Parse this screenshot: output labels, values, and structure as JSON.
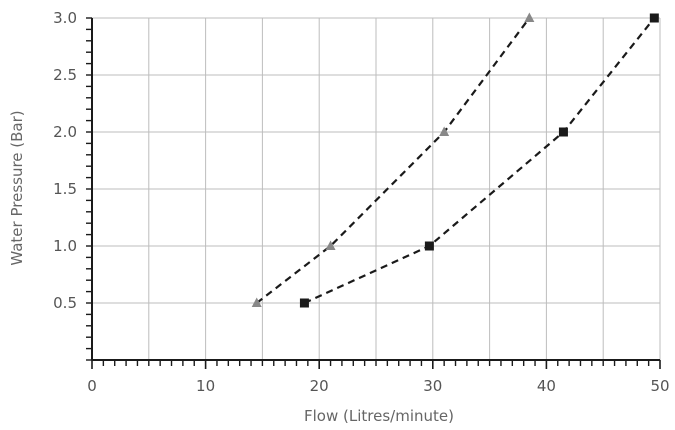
{
  "chart_data": {
    "type": "scatter",
    "title": "",
    "xlabel": "Flow (Litres/minute)",
    "ylabel": "Water Pressure (Bar)",
    "xlim": [
      0,
      50
    ],
    "ylim": [
      0,
      3.0
    ],
    "x_ticks": [
      0,
      10,
      20,
      30,
      40,
      50
    ],
    "x_tick_labels": [
      "0",
      "10",
      "20",
      "30",
      "40",
      "50"
    ],
    "y_ticks": [
      0.5,
      1.0,
      1.5,
      2.0,
      2.5,
      3.0
    ],
    "y_tick_labels": [
      "0.5",
      "1.0",
      "1.5",
      "2.0",
      "2.5",
      "3.0"
    ],
    "grid": true,
    "x_minor_step": 1,
    "y_minor_step": 0.1,
    "series": [
      {
        "marker": "triangle",
        "color": "#888888",
        "line": "dashed",
        "points": [
          {
            "x": 14.5,
            "y": 0.5
          },
          {
            "x": 21,
            "y": 1.0
          },
          {
            "x": 31,
            "y": 2.0
          },
          {
            "x": 38.5,
            "y": 3.0
          }
        ]
      },
      {
        "marker": "square",
        "color": "#1a1a1a",
        "line": "dashed",
        "points": [
          {
            "x": 18.7,
            "y": 0.5
          },
          {
            "x": 29.7,
            "y": 1.0
          },
          {
            "x": 41.5,
            "y": 2.0
          },
          {
            "x": 49.5,
            "y": 3.0
          }
        ]
      }
    ]
  }
}
